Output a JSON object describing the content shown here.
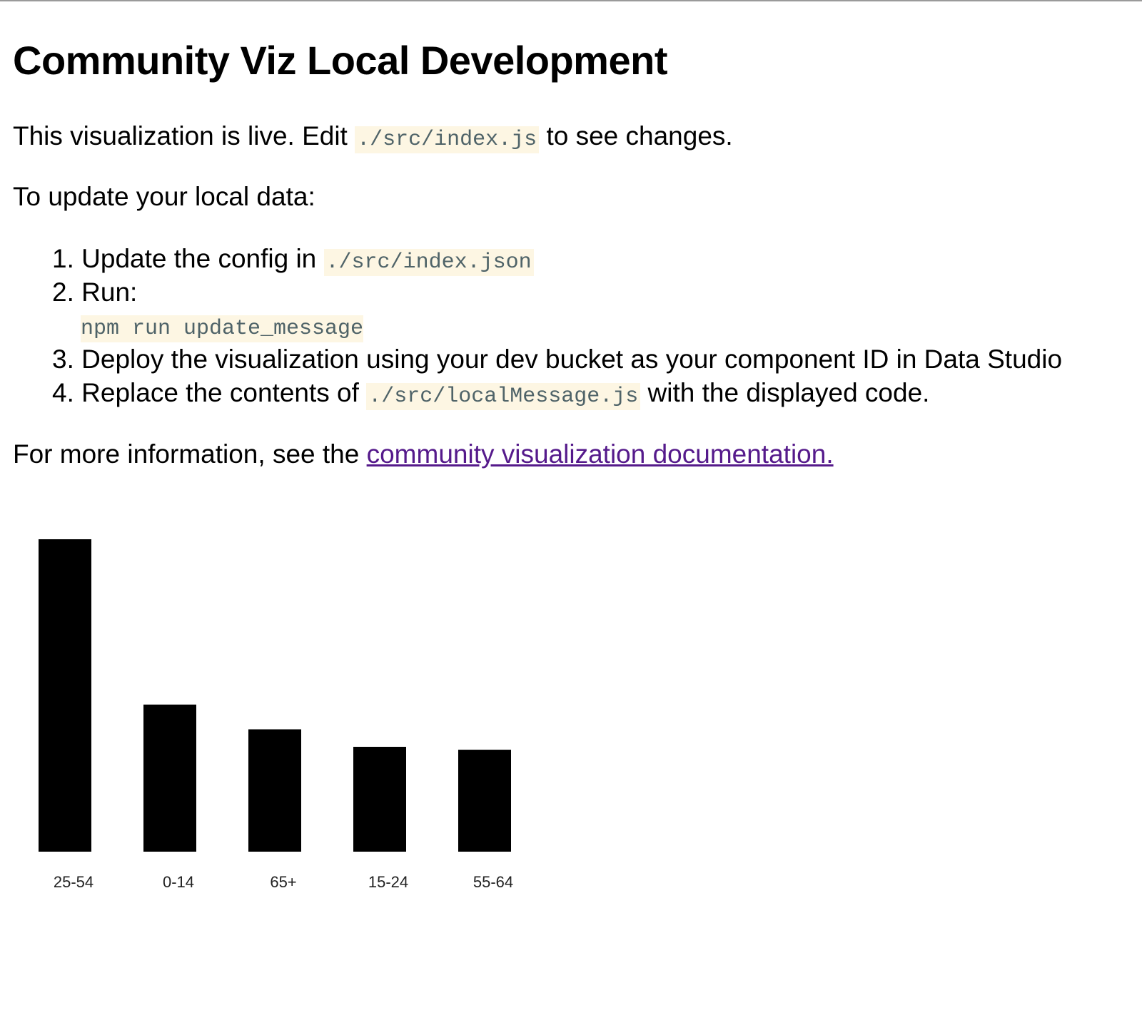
{
  "title": "Community Viz Local Development",
  "intro": {
    "before": "This visualization is live. Edit",
    "code": "./src/index.js",
    "after": "to see changes."
  },
  "update_heading": "To update your local data:",
  "steps": [
    {
      "num": "1.",
      "text": "Update the config in",
      "code": "./src/index.json"
    },
    {
      "num": "2.",
      "text": "Run:",
      "code": "npm run update_message"
    },
    {
      "num": "3.",
      "text": "Deploy the visualization using your dev bucket as your component ID in Data Studio"
    },
    {
      "num": "4.",
      "text": "Replace the contents of",
      "code": "./src/localMessage.js",
      "after": "with the displayed code."
    }
  ],
  "more_info": {
    "before": "For more information, see the",
    "link": "community visualization documentation."
  },
  "chart_data": {
    "type": "bar",
    "categories": [
      "25-54",
      "0-14",
      "65+",
      "15-24",
      "55-64"
    ],
    "values": [
      429,
      202,
      168,
      144,
      140
    ],
    "bar_color": "#000000",
    "title": "",
    "xlabel": "",
    "ylabel": "",
    "grid": false
  }
}
